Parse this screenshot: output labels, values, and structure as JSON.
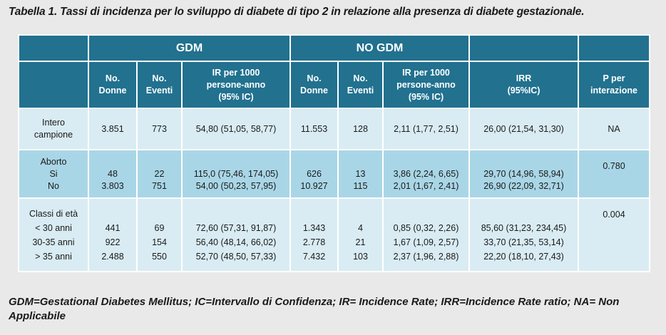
{
  "caption": "Tabella 1. Tassi di incidenza per lo sviluppo di diabete di tipo 2 in relazione alla presenza di diabete gestazionale.",
  "groups": {
    "gdm": "GDM",
    "no_gdm": "NO GDM"
  },
  "subheaders": {
    "no_donne": [
      "No.",
      "Donne"
    ],
    "no_eventi": [
      "No.",
      "Eventi"
    ],
    "ir": [
      "IR per 1000",
      "persone-anno",
      "(95% IC)"
    ],
    "irr": [
      "IRR",
      "(95%IC)"
    ],
    "p": [
      "P per",
      "interazione"
    ]
  },
  "rows": {
    "intero": {
      "label": [
        "Intero",
        "campione"
      ],
      "gdm_donne": "3.851",
      "gdm_eventi": "773",
      "gdm_ir": "54,80 (51,05, 58,77)",
      "no_donne": "11.553",
      "no_eventi": "128",
      "no_ir": "2,11 (1,77, 2,51)",
      "irr": "26,00 (21,54, 31,30)",
      "p": "NA"
    },
    "aborto": {
      "label": [
        "Aborto",
        "Si",
        "No"
      ],
      "gdm_donne": [
        "48",
        "3.803"
      ],
      "gdm_eventi": [
        "22",
        "751"
      ],
      "gdm_ir": [
        "115,0 (75,46, 174,05)",
        "54,00 (50,23, 57,95)"
      ],
      "no_donne": [
        "626",
        "10.927"
      ],
      "no_eventi": [
        "13",
        "115"
      ],
      "no_ir": [
        "3,86 (2,24, 6,65)",
        "2,01 (1,67, 2,41)"
      ],
      "irr": [
        "29,70 (14,96, 58,94)",
        "26,90 (22,09, 32,71)"
      ],
      "p": "0.780"
    },
    "classi": {
      "label": [
        "Classi di età",
        "< 30 anni",
        "30-35 anni",
        "> 35 anni"
      ],
      "gdm_donne": [
        "441",
        "922",
        "2.488"
      ],
      "gdm_eventi": [
        "69",
        "154",
        "550"
      ],
      "gdm_ir": [
        "72,60 (57,31, 91,87)",
        "56,40 (48,14, 66,02)",
        "52,70 (48,50, 57,33)"
      ],
      "no_donne": [
        "1.343",
        "2.778",
        "7.432"
      ],
      "no_eventi": [
        "4",
        "21",
        "103"
      ],
      "no_ir": [
        "0,85 (0,32, 2,26)",
        "1,67 (1,09, 2,57)",
        "2,37 (1,96, 2,88)"
      ],
      "irr": [
        "85,60 (31,23, 234,45)",
        "33,70 (21,35, 53,14)",
        "22,20 (18,10, 27,43)"
      ],
      "p": "0.004"
    }
  },
  "footnote": "GDM=Gestational Diabetes Mellitus; IC=Intervallo di Confidenza; IR= Incidence Rate; IRR=Incidence Rate ratio; NA= Non Applicabile",
  "colors": {
    "header": "#21718f",
    "row_light": "#d9ecf3",
    "row_dark": "#a9d6e6",
    "background": "#e9e9e9"
  }
}
